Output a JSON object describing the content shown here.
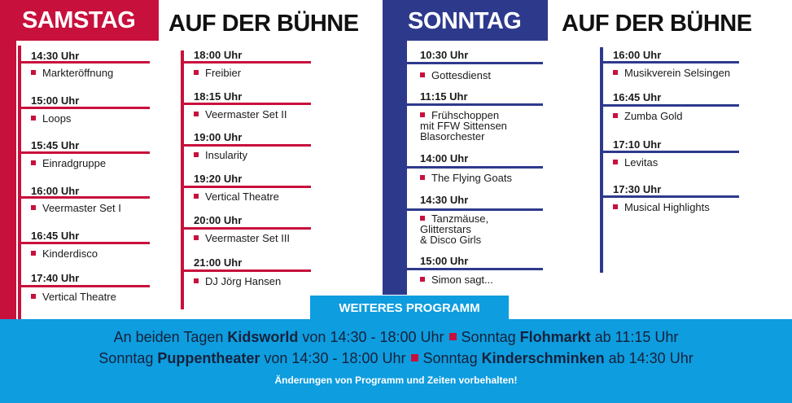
{
  "saturday": {
    "day": "SAMSTAG",
    "stage": "AUF DER BÜHNE",
    "col1": [
      {
        "time": "14:30 Uhr",
        "act": "Markteröffnung"
      },
      {
        "time": "15:00 Uhr",
        "act": "Loops"
      },
      {
        "time": "15:45 Uhr",
        "act": "Einradgruppe"
      },
      {
        "time": "16:00 Uhr",
        "act": "Veermaster Set I"
      },
      {
        "time": "16:45 Uhr",
        "act": "Kinderdisco"
      },
      {
        "time": "17:40 Uhr",
        "act": "Vertical Theatre"
      }
    ],
    "col2": [
      {
        "time": "18:00 Uhr",
        "act": "Freibier"
      },
      {
        "time": "18:15 Uhr",
        "act": "Veermaster Set II"
      },
      {
        "time": "19:00 Uhr",
        "act": "Insularity"
      },
      {
        "time": "19:20 Uhr",
        "act": "Vertical Theatre"
      },
      {
        "time": "20:00 Uhr",
        "act": "Veermaster Set III"
      },
      {
        "time": "21:00 Uhr",
        "act": "DJ Jörg Hansen"
      }
    ]
  },
  "sunday": {
    "day": "SONNTAG",
    "stage": "AUF DER BÜHNE",
    "col1": [
      {
        "time": "10:30 Uhr",
        "act": "Gottesdienst"
      },
      {
        "time": "11:15 Uhr",
        "act": "Frühschoppen\nmit FFW Sittensen\nBlasorchester"
      },
      {
        "time": "14:00 Uhr",
        "act": "The Flying Goats"
      },
      {
        "time": "14:30 Uhr",
        "act": "Tanzmäuse,\nGlitterstars\n& Disco Girls"
      },
      {
        "time": "15:00 Uhr",
        "act": "Simon sagt..."
      }
    ],
    "col2": [
      {
        "time": "16:00 Uhr",
        "act": "Musikverein Selsingen"
      },
      {
        "time": "16:45 Uhr",
        "act": "Zumba Gold"
      },
      {
        "time": "17:10 Uhr",
        "act": "Levitas"
      },
      {
        "time": "17:30 Uhr",
        "act": "Musical Highlights"
      }
    ]
  },
  "footer": {
    "heading": "WEITERES PROGRAMM",
    "line1": {
      "a1": "An beiden Tagen ",
      "b1": "Kidsworld",
      "a2": " von 14:30 - 18:00 Uhr",
      "a3": "Sonntag ",
      "b2": "Flohmarkt",
      "a4": " ab 11:15 Uhr"
    },
    "line2": {
      "a1": "Sonntag ",
      "b1": "Puppentheater",
      "a2": " von 14:30 - 18:00 Uhr",
      "a3": "Sonntag ",
      "b2": "Kinderschminken",
      "a4": " ab 14:30 Uhr"
    },
    "note": "Änderungen von Programm und Zeiten vorbehalten!"
  },
  "colors": {
    "red": "#c8103c",
    "blue": "#2d3a8c",
    "cyan": "#0e9ddf"
  }
}
